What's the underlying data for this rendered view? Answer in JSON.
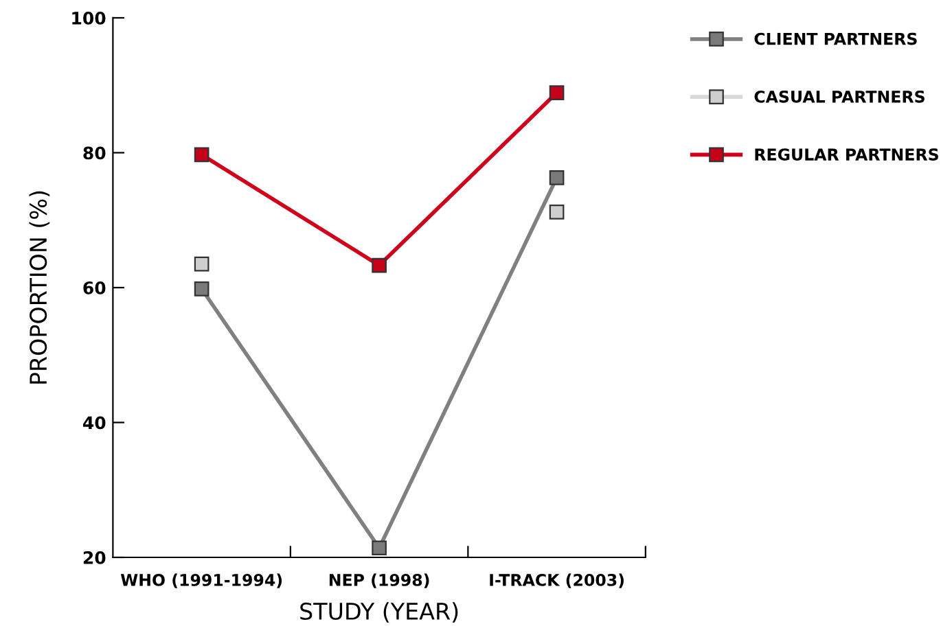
{
  "chart_data": {
    "type": "line",
    "xlabel": "STUDY (YEAR)",
    "ylabel": "PROPORTION (%)",
    "categories": [
      "WHO (1991-1994)",
      "NEP (1998)",
      "I-TRACK (2003)"
    ],
    "series": [
      {
        "name": "CLIENT PARTNERS",
        "color": "#808080",
        "values": [
          59.8,
          21.4,
          76.3
        ]
      },
      {
        "name": "CASUAL PARTNERS",
        "type": "scatter",
        "color": "#d9d9d9",
        "values": [
          63.5,
          null,
          71.2
        ]
      },
      {
        "name": "REGULAR PARTNERS",
        "color": "#d0021b",
        "values": [
          79.7,
          63.3,
          88.9
        ]
      }
    ],
    "ylim": [
      20,
      100
    ],
    "yticks": [
      20,
      40,
      60,
      80,
      100
    ],
    "grid": false,
    "legend": "right",
    "marker": "square",
    "line_style": "solid"
  }
}
